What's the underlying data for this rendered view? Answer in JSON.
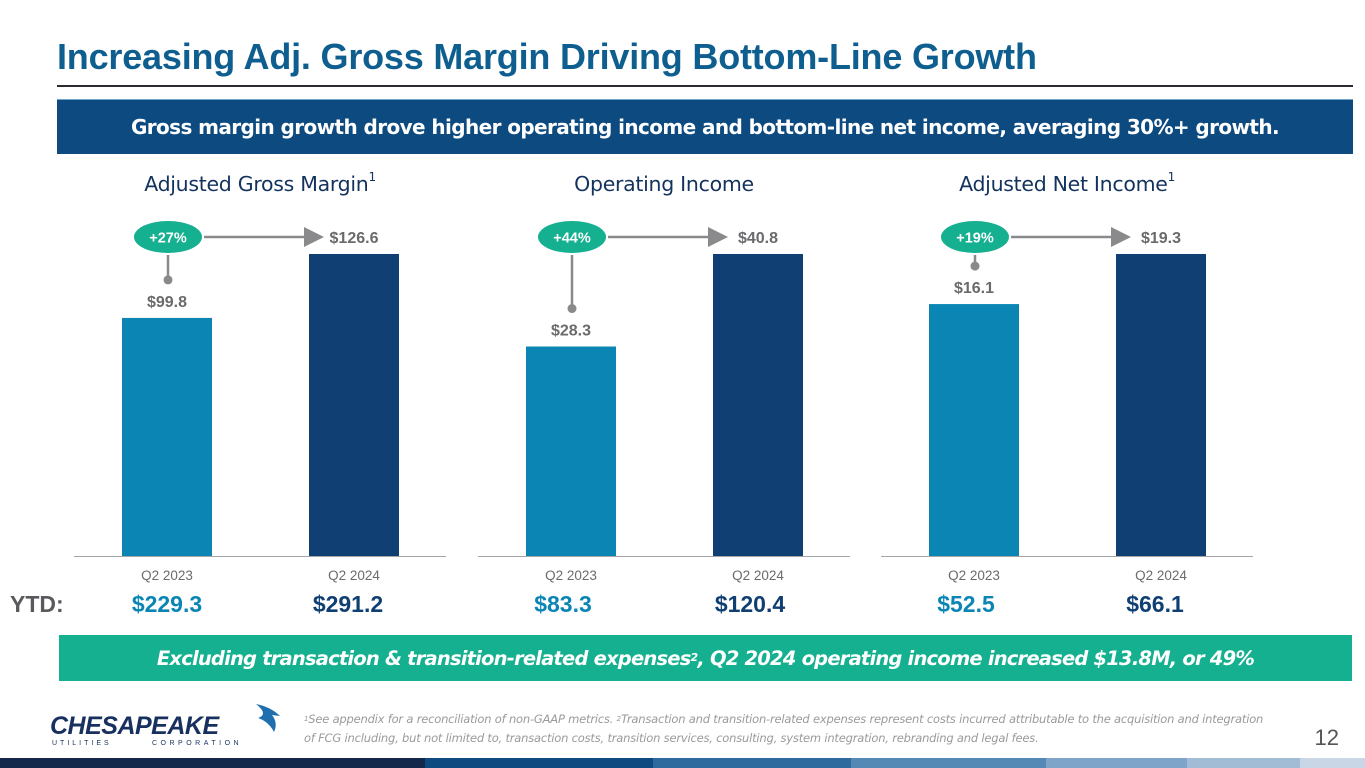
{
  "slide": {
    "title": "Increasing Adj. Gross Margin Driving Bottom-Line Growth",
    "top_banner": "Gross margin growth drove higher operating income and bottom-line net income, averaging 30%+ growth.",
    "bottom_banner": {
      "before_sup": "Excluding transaction & transition-related expenses",
      "sup": "2",
      "after_sup": ", Q2 2024 operating income increased $13.8M, or 49%"
    },
    "ytd_label": "YTD:",
    "footnote": {
      "sup1": "1",
      "text1": "See appendix for a reconciliation of non-GAAP metrics. ",
      "sup2": "2",
      "text2": "Transaction and transition-related expenses represent costs incurred attributable to the acquisition and integration of FCG including, but not limited to, transaction costs, transition services, consulting, system integration, rebranding and legal fees."
    },
    "page_number": "12",
    "logo": {
      "name": "CHESAPEAKE",
      "sub_left": "UTILITIES",
      "sub_right": "CORPORATION"
    }
  },
  "colors": {
    "title": "#0e5f8f",
    "banner_top": "#0d4a80",
    "banner_bottom": "#14b090",
    "bar_2023": "#0a85b4",
    "bar_2024": "#0f3f73",
    "badge": "#14b090",
    "connector": "#8a8a8c",
    "value_label": "#6a6a6d"
  },
  "chart_data": [
    {
      "type": "bar",
      "title": "Adjusted Gross Margin",
      "title_sup": "1",
      "categories": [
        "Q2 2023",
        "Q2 2024"
      ],
      "values": [
        99.8,
        126.6
      ],
      "value_labels": [
        "$99.8",
        "$126.6"
      ],
      "growth_badge": "+27%",
      "ytd": [
        "$229.3",
        "$291.2"
      ],
      "units": "$M",
      "grid": false
    },
    {
      "type": "bar",
      "title": "Operating Income",
      "title_sup": "",
      "categories": [
        "Q2 2023",
        "Q2 2024"
      ],
      "values": [
        28.3,
        40.8
      ],
      "value_labels": [
        "$28.3",
        "$40.8"
      ],
      "growth_badge": "+44%",
      "ytd": [
        "$83.3",
        "$120.4"
      ],
      "units": "$M",
      "grid": false
    },
    {
      "type": "bar",
      "title": "Adjusted Net Income",
      "title_sup": "1",
      "categories": [
        "Q2 2023",
        "Q2 2024"
      ],
      "values": [
        16.1,
        19.3
      ],
      "value_labels": [
        "$16.1",
        "$19.3"
      ],
      "growth_badge": "+19%",
      "ytd": [
        "$52.5",
        "$66.1"
      ],
      "units": "$M",
      "grid": false
    }
  ]
}
